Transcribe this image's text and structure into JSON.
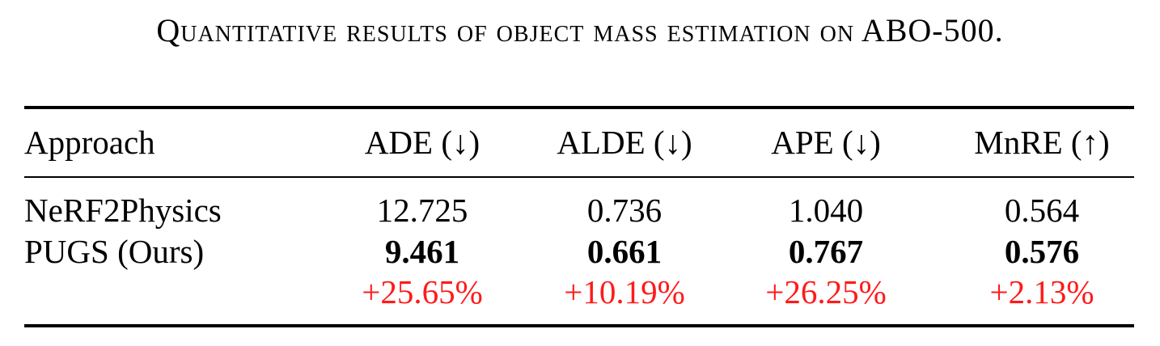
{
  "caption": "Quantitative results of object mass estimation on ABO-500.",
  "table": {
    "headers": [
      "Approach",
      "ADE (↓)",
      "ALDE (↓)",
      "APE (↓)",
      "MnRE (↑)"
    ],
    "rows": [
      {
        "approach": "NeRF2Physics",
        "values": [
          "12.725",
          "0.736",
          "1.040",
          "0.564"
        ],
        "bold": false
      },
      {
        "approach": "PUGS (Ours)",
        "values": [
          "9.461",
          "0.661",
          "0.767",
          "0.576"
        ],
        "bold": true
      },
      {
        "approach": "",
        "values": [
          "+25.65%",
          "+10.19%",
          "+26.25%",
          "+2.13%"
        ],
        "bold": false
      }
    ],
    "improvement_color": "#ff1a1a"
  }
}
